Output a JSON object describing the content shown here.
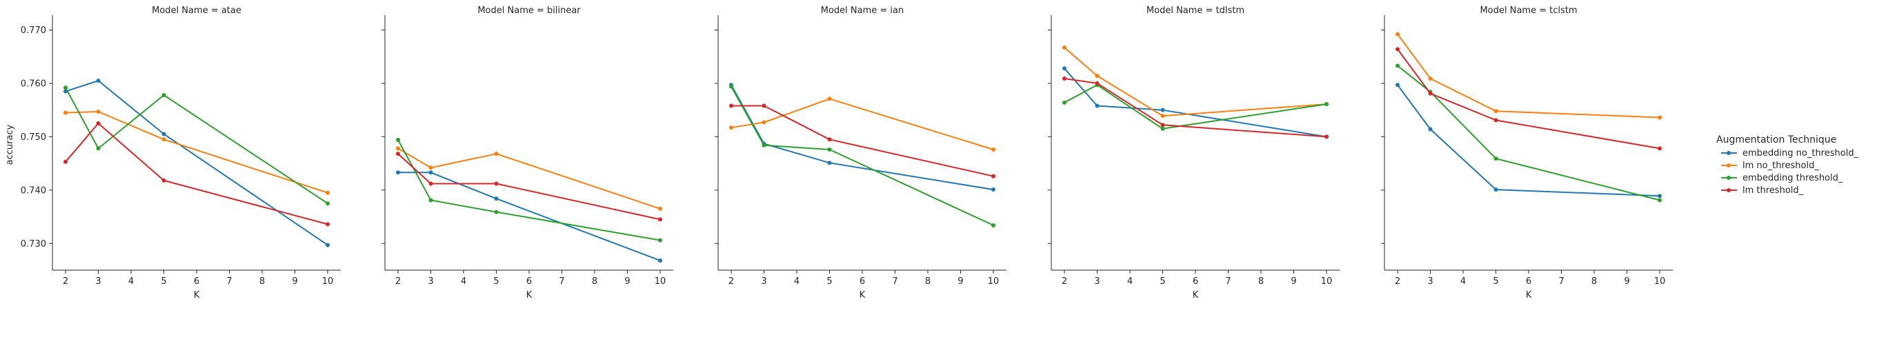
{
  "colors": {
    "embedding no_threshold_": "#1f77b4",
    "lm no_threshold_": "#ff7f0e",
    "embedding threshold_": "#2ca02c",
    "lm threshold_": "#d62728"
  },
  "chart_data": {
    "type": "line",
    "ylabel": "accuracy",
    "xlabel": "K",
    "x_ticks": [
      2,
      3,
      4,
      5,
      6,
      7,
      8,
      9,
      10
    ],
    "y_ticks": [
      0.73,
      0.74,
      0.75,
      0.76,
      0.77
    ],
    "xlim": [
      1.6,
      10.4
    ],
    "ylim": [
      0.725,
      0.772
    ],
    "legend_title": "Augmentation Technique",
    "legend_position": "right",
    "x": [
      2,
      3,
      5,
      10
    ],
    "panels": [
      {
        "title": "Model Name = atae",
        "series": [
          {
            "name": "embedding no_threshold_",
            "values": [
              0.7585,
              0.7605,
              0.7505,
              0.7297
            ]
          },
          {
            "name": "lm no_threshold_",
            "values": [
              0.7545,
              0.7547,
              0.7495,
              0.7395
            ]
          },
          {
            "name": "embedding threshold_",
            "values": [
              0.7592,
              0.7478,
              0.7578,
              0.7375
            ]
          },
          {
            "name": "lm threshold_",
            "values": [
              0.7453,
              0.7525,
              0.7418,
              0.7336
            ]
          }
        ]
      },
      {
        "title": "Model Name = bilinear",
        "series": [
          {
            "name": "embedding no_threshold_",
            "values": [
              0.7433,
              0.7433,
              0.7384,
              0.7268
            ]
          },
          {
            "name": "lm no_threshold_",
            "values": [
              0.7478,
              0.7442,
              0.7468,
              0.7365
            ]
          },
          {
            "name": "embedding threshold_",
            "values": [
              0.7494,
              0.7381,
              0.7359,
              0.7306
            ]
          },
          {
            "name": "lm threshold_",
            "values": [
              0.7468,
              0.7412,
              0.7412,
              0.7345
            ]
          }
        ]
      },
      {
        "title": "Model Name = ian",
        "series": [
          {
            "name": "embedding no_threshold_",
            "values": [
              0.7597,
              0.7487,
              0.7451,
              0.7401
            ]
          },
          {
            "name": "lm no_threshold_",
            "values": [
              0.7517,
              0.7527,
              0.7571,
              0.7476
            ]
          },
          {
            "name": "embedding threshold_",
            "values": [
              0.7594,
              0.7484,
              0.7476,
              0.7334
            ]
          },
          {
            "name": "lm threshold_",
            "values": [
              0.7558,
              0.7558,
              0.7495,
              0.7426
            ]
          }
        ]
      },
      {
        "title": "Model Name = tdlstm",
        "series": [
          {
            "name": "embedding no_threshold_",
            "values": [
              0.7628,
              0.7558,
              0.755,
              0.75
            ]
          },
          {
            "name": "lm no_threshold_",
            "values": [
              0.7667,
              0.7614,
              0.7539,
              0.7561
            ]
          },
          {
            "name": "embedding threshold_",
            "values": [
              0.7564,
              0.7597,
              0.7515,
              0.7561
            ]
          },
          {
            "name": "lm threshold_",
            "values": [
              0.7609,
              0.76,
              0.7522,
              0.75
            ]
          }
        ]
      },
      {
        "title": "Model Name = tclstm",
        "series": [
          {
            "name": "embedding no_threshold_",
            "values": [
              0.7597,
              0.7514,
              0.7401,
              0.7389
            ]
          },
          {
            "name": "lm no_threshold_",
            "values": [
              0.7692,
              0.7609,
              0.7548,
              0.7536
            ]
          },
          {
            "name": "embedding threshold_",
            "values": [
              0.7633,
              0.7584,
              0.7459,
              0.7381
            ]
          },
          {
            "name": "lm threshold_",
            "values": [
              0.7664,
              0.7581,
              0.7531,
              0.7478
            ]
          }
        ]
      }
    ]
  }
}
